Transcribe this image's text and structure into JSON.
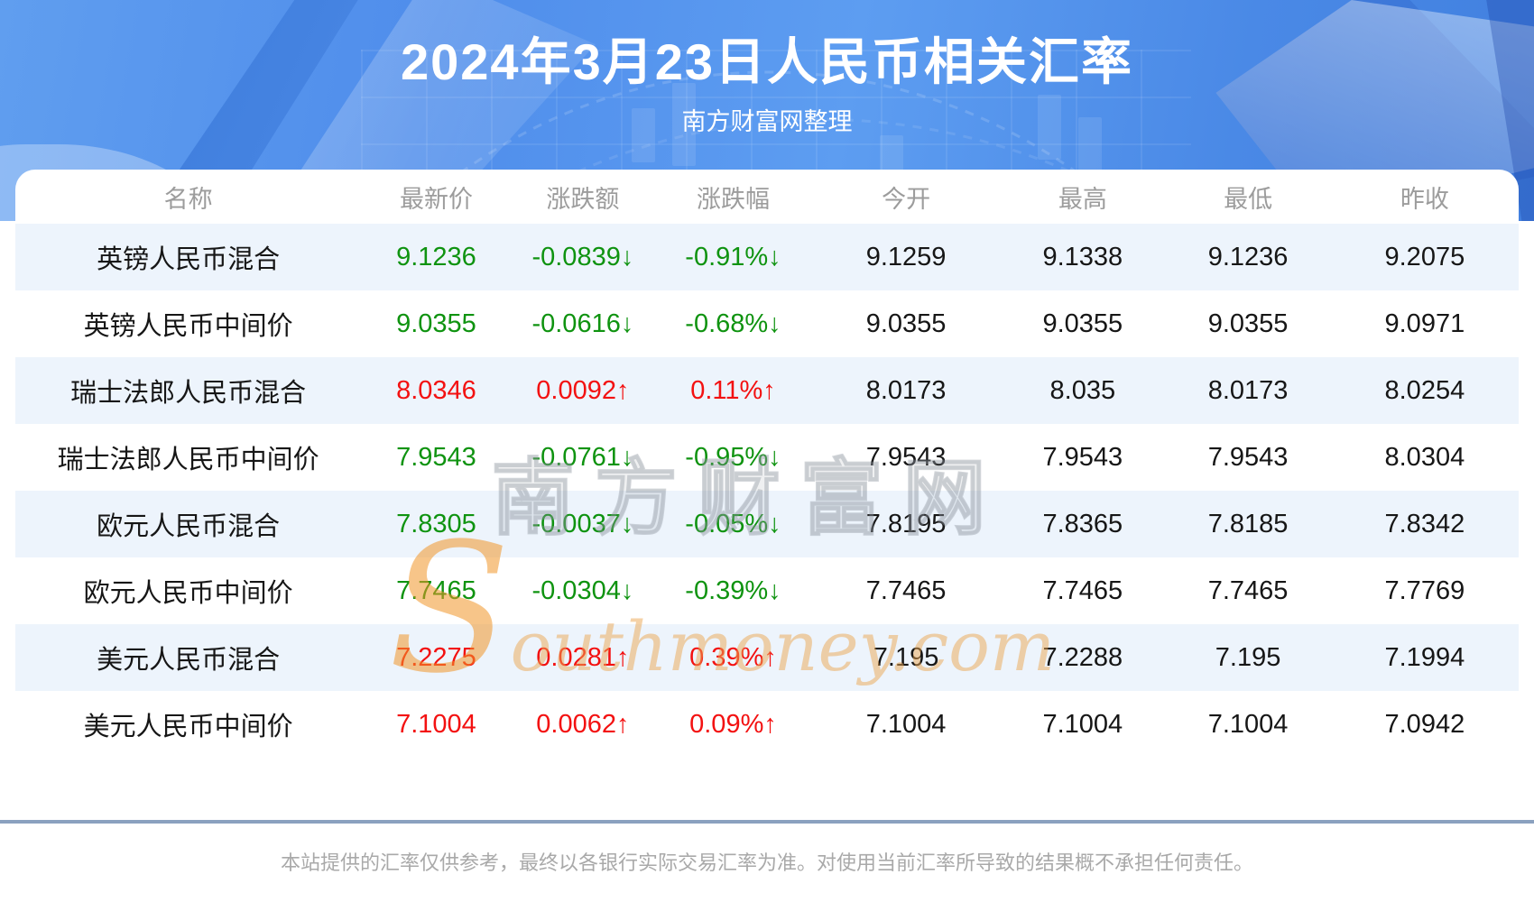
{
  "header": {
    "title": "2024年3月23日人民币相关汇率",
    "subtitle": "南方财富网整理"
  },
  "table": {
    "columns": [
      "名称",
      "最新价",
      "涨跌额",
      "涨跌幅",
      "今开",
      "最高",
      "最低",
      "昨收"
    ],
    "rows": [
      {
        "name": "英镑人民币混合",
        "latest": "9.1236",
        "change": "-0.0839↓",
        "pct": "-0.91%↓",
        "open": "9.1259",
        "high": "9.1338",
        "low": "9.1236",
        "prev": "9.2075",
        "dir": "down"
      },
      {
        "name": "英镑人民币中间价",
        "latest": "9.0355",
        "change": "-0.0616↓",
        "pct": "-0.68%↓",
        "open": "9.0355",
        "high": "9.0355",
        "low": "9.0355",
        "prev": "9.0971",
        "dir": "down"
      },
      {
        "name": "瑞士法郎人民币混合",
        "latest": "8.0346",
        "change": "0.0092↑",
        "pct": "0.11%↑",
        "open": "8.0173",
        "high": "8.035",
        "low": "8.0173",
        "prev": "8.0254",
        "dir": "up"
      },
      {
        "name": "瑞士法郎人民币中间价",
        "latest": "7.9543",
        "change": "-0.0761↓",
        "pct": "-0.95%↓",
        "open": "7.9543",
        "high": "7.9543",
        "low": "7.9543",
        "prev": "8.0304",
        "dir": "down"
      },
      {
        "name": "欧元人民币混合",
        "latest": "7.8305",
        "change": "-0.0037↓",
        "pct": "-0.05%↓",
        "open": "7.8195",
        "high": "7.8365",
        "low": "7.8185",
        "prev": "7.8342",
        "dir": "down"
      },
      {
        "name": "欧元人民币中间价",
        "latest": "7.7465",
        "change": "-0.0304↓",
        "pct": "-0.39%↓",
        "open": "7.7465",
        "high": "7.7465",
        "low": "7.7465",
        "prev": "7.7769",
        "dir": "down"
      },
      {
        "name": "美元人民币混合",
        "latest": "7.2275",
        "change": "0.0281↑",
        "pct": "0.39%↑",
        "open": "7.195",
        "high": "7.2288",
        "low": "7.195",
        "prev": "7.1994",
        "dir": "up"
      },
      {
        "name": "美元人民币中间价",
        "latest": "7.1004",
        "change": "0.0062↑",
        "pct": "0.09%↑",
        "open": "7.1004",
        "high": "7.1004",
        "low": "7.1004",
        "prev": "7.0942",
        "dir": "up"
      }
    ]
  },
  "watermark": {
    "cn": "南方财富网",
    "en": "Southmoney.com"
  },
  "footer": {
    "disclaimer": "本站提供的汇率仅供参考，最终以各银行实际交易汇率为准。对使用当前汇率所导致的结果概不承担任何责任。"
  },
  "colors": {
    "up_red": "#f31111",
    "down_green": "#0f9310",
    "stripe_blue": "#edf4fc",
    "banner_blue": "#4f8deb",
    "divider_blue_gray": "#8ba1bf",
    "header_text_gray": "#9c9c9c"
  }
}
